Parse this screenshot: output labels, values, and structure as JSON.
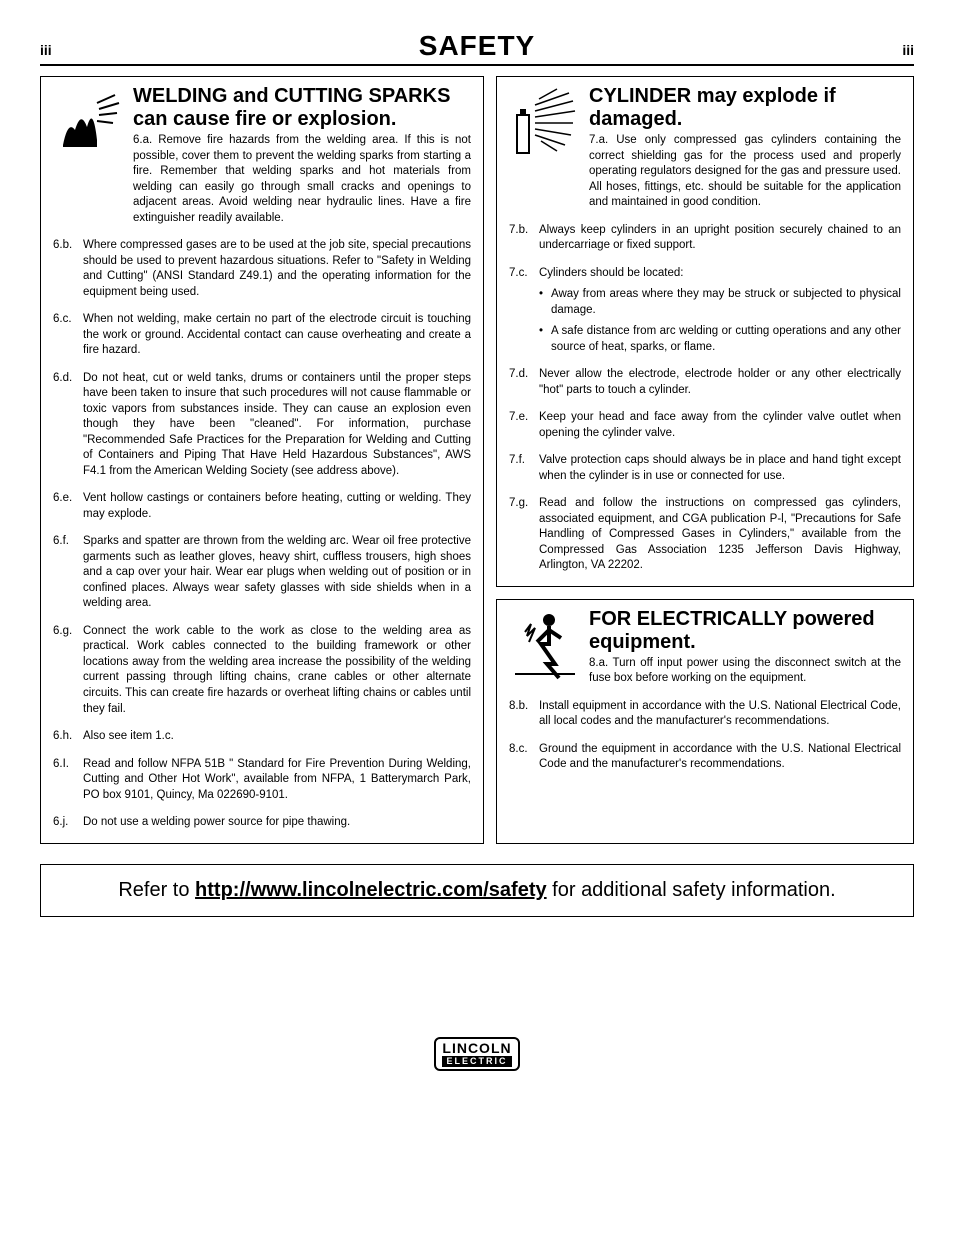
{
  "header": {
    "left": "iii",
    "title": "SAFETY",
    "right": "iii"
  },
  "left_col": {
    "title": "WELDING and CUTTING SPARKS can cause fire or explosion.",
    "first_label": "6.a.",
    "first_text": "Remove fire hazards from the welding area. If this is not possible, cover them to prevent the welding sparks from starting a fire. Remember that welding sparks and hot materials from welding can easily go through small cracks and openings to adjacent areas. Avoid welding near hydraulic lines. Have a fire extinguisher readily available.",
    "items": [
      {
        "lbl": "6.b.",
        "txt": "Where compressed gases are to be used at the job site, special precautions should be used to prevent hazardous situations. Refer to \"Safety in Welding and Cutting\" (ANSI Standard Z49.1) and the operating information for the equipment being used."
      },
      {
        "lbl": "6.c.",
        "txt": "When not welding, make certain no part of the electrode circuit is touching the work or ground. Accidental contact can cause overheating and create a fire hazard."
      },
      {
        "lbl": "6.d.",
        "txt": "Do not heat, cut or weld tanks, drums or containers until the proper steps have been taken to insure that such procedures will not cause flammable or toxic vapors from substances inside. They can cause an explosion even though they have been \"cleaned\". For information, purchase \"Recommended Safe Practices for the Preparation for Welding and Cutting of Containers and Piping That Have Held Hazardous Substances\", AWS F4.1 from the American Welding Society (see address above)."
      },
      {
        "lbl": "6.e.",
        "txt": "Vent hollow castings or containers before heating, cutting or welding. They may explode."
      },
      {
        "lbl": "6.f.",
        "txt": "Sparks and spatter are thrown from the welding arc. Wear oil free protective garments such as leather gloves, heavy shirt, cuffless trousers, high shoes and a cap over your hair. Wear ear plugs when welding out of position or in confined places. Always wear safety glasses with side shields when in a welding area."
      },
      {
        "lbl": "6.g.",
        "txt": "Connect the work cable to the work as close to the welding area as practical. Work cables connected to the building framework or other locations away from the welding area increase the possibility of the welding current passing through lifting chains, crane cables or other alternate circuits. This can create fire hazards or overheat lifting chains or cables until they fail."
      },
      {
        "lbl": "6.h.",
        "txt": "Also see item 1.c."
      },
      {
        "lbl": "6.I.",
        "txt": "Read and follow NFPA 51B \" Standard for Fire Prevention During Welding, Cutting and Other Hot Work\", available from NFPA, 1 Batterymarch Park, PO box 9101, Quincy, Ma 022690-9101."
      },
      {
        "lbl": "6.j.",
        "txt": "Do not use a welding power source for pipe thawing."
      }
    ]
  },
  "right_top": {
    "title": "CYLINDER may explode if damaged.",
    "first_label": "7.a.",
    "first_text": "Use only compressed gas cylinders containing the correct shielding gas for the process used and properly operating regulators designed for the gas and pressure used. All hoses, fittings, etc. should be suitable for the application and maintained in good condition.",
    "items": [
      {
        "lbl": "7.b.",
        "txt": "Always keep cylinders in an upright position securely chained to an undercarriage or fixed support."
      },
      {
        "lbl": "7.c.",
        "txt": "Cylinders should be located:",
        "bullets": [
          "Away from areas where they may be struck or subjected to physical damage.",
          "A safe distance from arc welding or cutting operations and any other source of heat, sparks, or flame."
        ]
      },
      {
        "lbl": "7.d.",
        "txt": "Never allow the electrode, electrode holder or any other electrically \"hot\" parts to touch a cylinder."
      },
      {
        "lbl": "7.e.",
        "txt": "Keep your head and face away from the cylinder valve outlet when opening the cylinder valve."
      },
      {
        "lbl": "7.f.",
        "txt": "Valve protection caps should always be in place and hand tight except when the cylinder is in use or connected for use."
      },
      {
        "lbl": "7.g.",
        "txt": "Read and follow the instructions on compressed gas cylinders, associated equipment, and CGA publication P-l, \"Precautions for Safe Handling of Compressed Gases in Cylinders,\" available from the Compressed Gas Association 1235 Jefferson Davis Highway, Arlington, VA 22202."
      }
    ]
  },
  "right_bottom": {
    "title": "FOR ELECTRICALLY powered equipment.",
    "first_label": "8.a.",
    "first_text": "Turn off input power using the disconnect switch at the fuse box before working on the equipment.",
    "items": [
      {
        "lbl": "8.b.",
        "txt": "Install equipment in accordance with the U.S. National Electrical Code, all local codes and the manufacturer's recommendations."
      },
      {
        "lbl": "8.c.",
        "txt": "Ground the equipment in accordance with the U.S. National Electrical Code and the manufacturer's recommendations."
      }
    ]
  },
  "footer": {
    "pre": "Refer to ",
    "link": "http://www.lincolnelectric.com/safety",
    "post": " for additional safety information."
  },
  "logo": {
    "top": "LINCOLN",
    "bottom": "ELECTRIC"
  }
}
